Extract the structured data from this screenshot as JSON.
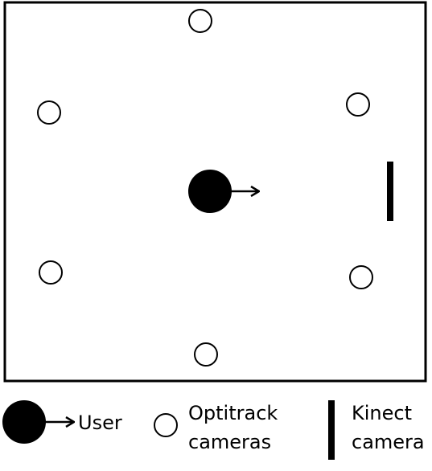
{
  "diagram": {
    "optitrack_cameras": [
      {
        "id": "top"
      },
      {
        "id": "upper-left"
      },
      {
        "id": "upper-right"
      },
      {
        "id": "lower-left"
      },
      {
        "id": "lower-right"
      },
      {
        "id": "bottom"
      }
    ],
    "user": {
      "facing": "right"
    },
    "kinect": {
      "orientation": "vertical"
    },
    "colors": {
      "stroke": "#000000",
      "fill_user": "#000000",
      "background": "#ffffff"
    }
  },
  "legend": {
    "user_label": "User",
    "optitrack_label_line1": "Optitrack",
    "optitrack_label_line2": "cameras",
    "kinect_label_line1": "Kinect",
    "kinect_label_line2": "camera"
  }
}
